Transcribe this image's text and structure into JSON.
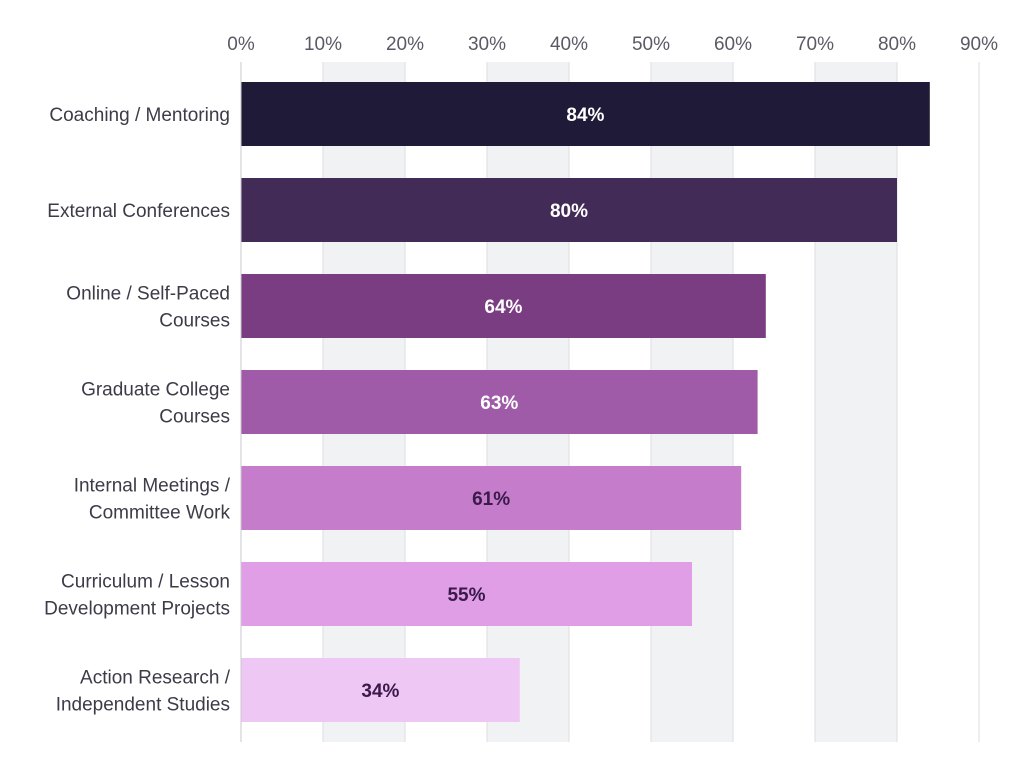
{
  "chart_data": {
    "type": "bar",
    "orientation": "horizontal",
    "title": "",
    "xlabel": "",
    "ylabel": "",
    "xlim": [
      0,
      90
    ],
    "x_ticks": [
      "0%",
      "10%",
      "20%",
      "30%",
      "40%",
      "50%",
      "60%",
      "70%",
      "80%",
      "90%"
    ],
    "x_tick_values": [
      0,
      10,
      20,
      30,
      40,
      50,
      60,
      70,
      80,
      90
    ],
    "grid": "vertical alternating bands",
    "legend": "none",
    "categories": [
      [
        "Coaching / Mentoring"
      ],
      [
        "External Conferences"
      ],
      [
        "Online / Self-Paced",
        "Courses"
      ],
      [
        "Graduate College",
        "Courses"
      ],
      [
        "Internal Meetings /",
        "Committee Work"
      ],
      [
        "Curriculum / Lesson",
        "Development Projects"
      ],
      [
        "Action Research /",
        "Independent Studies"
      ]
    ],
    "values": [
      84,
      80,
      64,
      63,
      61,
      55,
      34
    ],
    "data_labels": [
      "84%",
      "80%",
      "64%",
      "63%",
      "61%",
      "55%",
      "34%"
    ],
    "bar_colors": [
      "#1e1a38",
      "#432b58",
      "#7b3d82",
      "#9f5aa8",
      "#c57ccb",
      "#df9ee6",
      "#efc7f5"
    ],
    "label_colors": [
      "#ffffff",
      "#ffffff",
      "#ffffff",
      "#ffffff",
      "#3a1a4a",
      "#3a1a4a",
      "#3a1a4a"
    ],
    "band_color": "#f1f2f4",
    "gridline_color": "#dcdde2"
  }
}
